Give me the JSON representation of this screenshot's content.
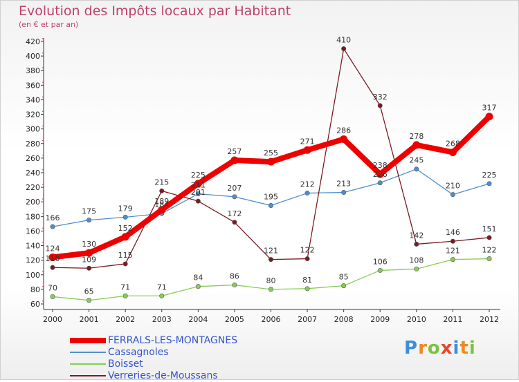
{
  "chart_data": {
    "type": "line",
    "title": "Evolution des Impôts locaux par Habitant",
    "subtitle": "(en € et par an)",
    "categories": [
      "2000",
      "2001",
      "2002",
      "2003",
      "2004",
      "2005",
      "2006",
      "2007",
      "2008",
      "2009",
      "2010",
      "2011",
      "2012"
    ],
    "ylim": [
      60,
      420
    ],
    "yticks": [
      60,
      80,
      100,
      120,
      140,
      160,
      180,
      200,
      220,
      240,
      260,
      280,
      300,
      320,
      340,
      360,
      380,
      400,
      420
    ],
    "grid": false,
    "legend": "bottom-left",
    "series": [
      {
        "name": "FERRALS-LES-MONTAGNES",
        "color": "#ee0000",
        "values": [
          124,
          130,
          152,
          189,
          225,
          257,
          255,
          271,
          286,
          238,
          278,
          268,
          317
        ]
      },
      {
        "name": "Cassagnoles",
        "color": "#4f8fcf",
        "values": [
          166,
          175,
          179,
          184,
          211,
          207,
          195,
          212,
          213,
          226,
          245,
          210,
          225
        ]
      },
      {
        "name": "Boisset",
        "color": "#88cc55",
        "values": [
          70,
          65,
          71,
          71,
          84,
          86,
          80,
          81,
          85,
          106,
          108,
          121,
          122
        ]
      },
      {
        "name": "Verreries-de-Moussans",
        "color": "#7a1a22",
        "values": [
          110,
          109,
          115,
          215,
          201,
          172,
          121,
          122,
          410,
          332,
          142,
          146,
          151
        ]
      }
    ]
  },
  "brand": {
    "name": "Proxiti",
    "letters": [
      "P",
      "r",
      "o",
      "x",
      "i",
      "t",
      "i"
    ]
  }
}
